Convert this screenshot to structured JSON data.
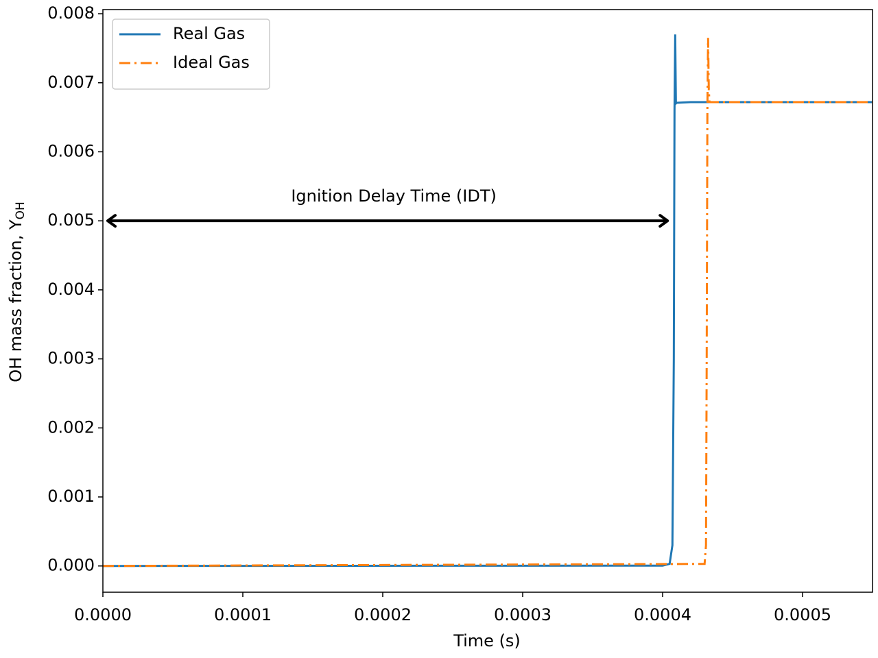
{
  "chart_data": {
    "type": "line",
    "xlabel": "Time (s)",
    "ylabel": "OH mass fraction, Y",
    "ylabel_sub": "OH",
    "xlim": [
      0,
      0.00055
    ],
    "ylim": [
      -0.00038,
      0.00806
    ],
    "xticks": [
      {
        "value": 0,
        "label": "0.0000"
      },
      {
        "value": 0.0001,
        "label": "0.0001"
      },
      {
        "value": 0.0002,
        "label": "0.0002"
      },
      {
        "value": 0.0003,
        "label": "0.0003"
      },
      {
        "value": 0.0004,
        "label": "0.0004"
      },
      {
        "value": 0.0005,
        "label": "0.0005"
      }
    ],
    "yticks": [
      {
        "value": 0,
        "label": "0.000"
      },
      {
        "value": 0.001,
        "label": "0.001"
      },
      {
        "value": 0.002,
        "label": "0.002"
      },
      {
        "value": 0.003,
        "label": "0.003"
      },
      {
        "value": 0.004,
        "label": "0.004"
      },
      {
        "value": 0.005,
        "label": "0.005"
      },
      {
        "value": 0.006,
        "label": "0.006"
      },
      {
        "value": 0.007,
        "label": "0.007"
      },
      {
        "value": 0.008,
        "label": "0.008"
      }
    ],
    "legend": "upper left",
    "series": [
      {
        "name": "Real Gas",
        "color": "#1f77b4",
        "linestyle": "solid",
        "x": [
          0,
          0.0004,
          0.000405,
          0.000407,
          0.000408,
          0.0004085,
          0.000409,
          0.0004095,
          0.00041,
          0.00042,
          0.00055
        ],
        "values": [
          0,
          5e-06,
          3e-05,
          0.0003,
          0.003,
          0.0066,
          0.0077,
          0.0067,
          0.00671,
          0.00672,
          0.00672
        ]
      },
      {
        "name": "Ideal Gas",
        "color": "#ff7f0e",
        "linestyle": "dashdot",
        "x": [
          0,
          0.00043,
          0.000431,
          0.0004315,
          0.000432,
          0.0004325,
          0.000433,
          0.0004335,
          0.00044,
          0.00055
        ],
        "values": [
          0,
          3e-05,
          0.0003,
          0.003,
          0.0066,
          0.00765,
          0.0069,
          0.00672,
          0.00672,
          0.00672
        ]
      }
    ],
    "annotation": {
      "text": "Ignition Delay Time (IDT)",
      "x": [
        0,
        0.000405
      ],
      "y": 0.005
    }
  }
}
